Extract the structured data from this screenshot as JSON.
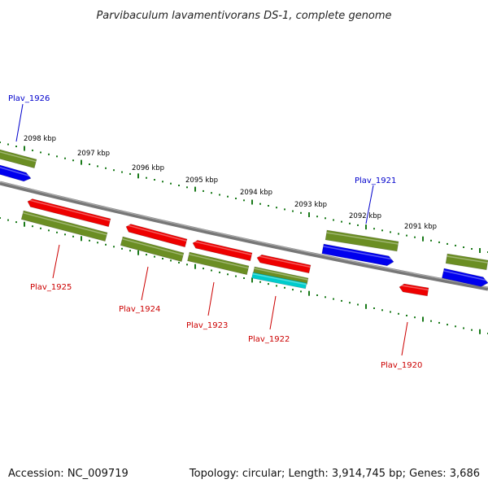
{
  "title": "Parvibaculum lavamentivorans DS-1, complete genome",
  "footer": {
    "accession": "Accession: NC_009719",
    "summary": "Topology: circular; Length: 3,914,745 bp; Genes: 3,686"
  },
  "colors": {
    "backbone": "#777777",
    "tick": "#1a7a1a",
    "forward_cds": "#0000ee",
    "reverse_cds": "#ee0000",
    "gene_track": "#6b8e23",
    "rna": "#00cccc",
    "forward_label": "#0000cc",
    "reverse_label": "#cc0000"
  },
  "ticks": [
    {
      "label": "2098 kbp"
    },
    {
      "label": "2097 kbp"
    },
    {
      "label": "2096 kbp"
    },
    {
      "label": "2095 kbp"
    },
    {
      "label": "2094 kbp"
    },
    {
      "label": "2093 kbp"
    },
    {
      "label": "2092 kbp"
    },
    {
      "label": "2091 kbp"
    }
  ],
  "genes": [
    {
      "name": "Plav_1926",
      "strand": "forward"
    },
    {
      "name": "Plav_1925",
      "strand": "reverse"
    },
    {
      "name": "Plav_1924",
      "strand": "reverse"
    },
    {
      "name": "Plav_1923",
      "strand": "reverse"
    },
    {
      "name": "Plav_1922",
      "strand": "reverse"
    },
    {
      "name": "Plav_1921",
      "strand": "forward"
    },
    {
      "name": "Plav_1920",
      "strand": "reverse"
    }
  ]
}
